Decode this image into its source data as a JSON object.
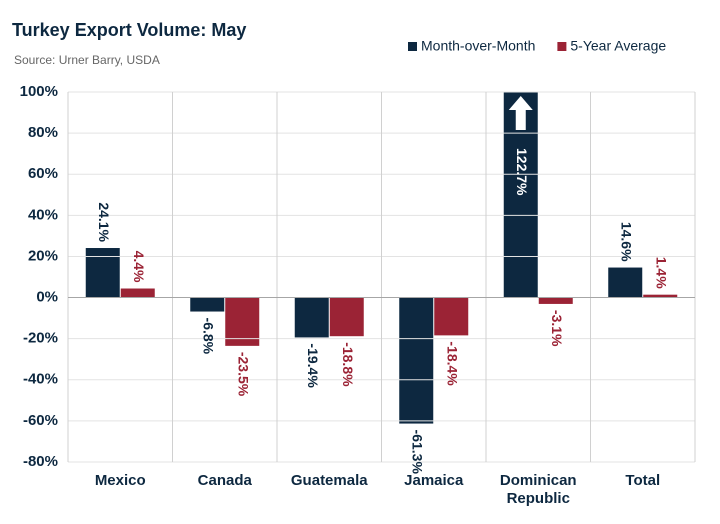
{
  "chart_data": {
    "type": "bar",
    "title": "Turkey Export Volume: May",
    "subtitle": "Source: Urner Barry, USDA",
    "categories": [
      "Mexico",
      "Canada",
      "Guatemala",
      "Jamaica",
      "Dominican Republic",
      "Total"
    ],
    "series": [
      {
        "name": "Month-over-Month",
        "color": "#0d2840",
        "values": [
          24.1,
          -6.8,
          -19.4,
          -61.3,
          122.7,
          14.6
        ],
        "value_labels": [
          "24.1%",
          "-6.8%",
          "-19.4%",
          "-61.3%",
          "122.7%",
          "14.6%"
        ]
      },
      {
        "name": "5-Year Average",
        "color": "#9b2335",
        "values": [
          4.4,
          -23.5,
          -18.8,
          -18.4,
          -3.1,
          1.4
        ],
        "value_labels": [
          "4.4%",
          "-23.5%",
          "-18.8%",
          "-18.4%",
          "-3.1%",
          "1.4%"
        ]
      }
    ],
    "ylim": [
      -80,
      100
    ],
    "yticks": [
      {
        "value": -80,
        "label": "-80%"
      },
      {
        "value": -60,
        "label": "-60%"
      },
      {
        "value": -40,
        "label": "-40%"
      },
      {
        "value": -20,
        "label": "-20%"
      },
      {
        "value": 0,
        "label": "0%"
      },
      {
        "value": 20,
        "label": "20%"
      },
      {
        "value": 40,
        "label": "40%"
      },
      {
        "value": 60,
        "label": "60%"
      },
      {
        "value": 80,
        "label": "80%"
      },
      {
        "value": 100,
        "label": "100%"
      }
    ],
    "grid": true,
    "legend": "top-right"
  }
}
